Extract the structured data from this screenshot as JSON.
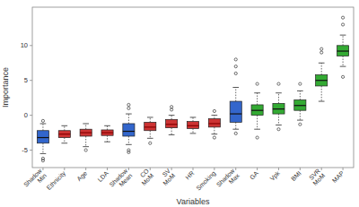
{
  "chart_data": {
    "type": "box",
    "xlabel": "Variables",
    "ylabel": "Importance",
    "categories": [
      "Shadow\nMin",
      "Ethnicity",
      "Age",
      "LDA",
      "Shadow\nMean",
      "CO\nMoM",
      "SV\nMoM",
      "HR",
      "Smoking",
      "Shadow\nMax",
      "GA",
      "Vpk",
      "BMI",
      "SVR\nMoM",
      "MAP"
    ],
    "colors": [
      "#3366cc",
      "#cc3333",
      "#cc3333",
      "#cc3333",
      "#3366cc",
      "#cc3333",
      "#cc3333",
      "#cc3333",
      "#cc3333",
      "#3366cc",
      "#33aa33",
      "#33aa33",
      "#33aa33",
      "#33aa33",
      "#33aa33"
    ],
    "boxes": [
      {
        "q1": -4.0,
        "med": -3.2,
        "q3": -2.2,
        "whislo": -5.5,
        "whishi": -1.2,
        "fliers_lo": [
          -6.2,
          -6.5
        ],
        "fliers_hi": [
          -0.8
        ]
      },
      {
        "q1": -3.2,
        "med": -2.7,
        "q3": -2.2,
        "whislo": -4.0,
        "whishi": -1.5,
        "fliers_lo": [],
        "fliers_hi": []
      },
      {
        "q1": -3.0,
        "med": -2.5,
        "q3": -2.0,
        "whislo": -4.5,
        "whishi": -1.2,
        "fliers_lo": [
          -5.0
        ],
        "fliers_hi": []
      },
      {
        "q1": -2.9,
        "med": -2.5,
        "q3": -2.1,
        "whislo": -3.8,
        "whishi": -1.5,
        "fliers_lo": [],
        "fliers_hi": []
      },
      {
        "q1": -3.0,
        "med": -2.3,
        "q3": -1.2,
        "whislo": -4.2,
        "whishi": 0.2,
        "fliers_lo": [
          -5.0,
          -5.3
        ],
        "fliers_hi": [
          1.0,
          1.5
        ]
      },
      {
        "q1": -2.2,
        "med": -1.7,
        "q3": -1.0,
        "whislo": -3.3,
        "whishi": -0.3,
        "fliers_lo": [
          -4.0
        ],
        "fliers_hi": []
      },
      {
        "q1": -1.8,
        "med": -1.3,
        "q3": -0.6,
        "whislo": -2.8,
        "whishi": 0.0,
        "fliers_lo": [],
        "fliers_hi": [
          0.8,
          1.2
        ]
      },
      {
        "q1": -1.9,
        "med": -1.5,
        "q3": -0.9,
        "whislo": -2.6,
        "whishi": -0.3,
        "fliers_lo": [],
        "fliers_hi": []
      },
      {
        "q1": -1.7,
        "med": -1.2,
        "q3": -0.5,
        "whislo": -2.7,
        "whishi": 0.0,
        "fliers_lo": [
          -3.2
        ],
        "fliers_hi": [
          0.6
        ]
      },
      {
        "q1": -1.0,
        "med": 0.2,
        "q3": 2.0,
        "whislo": -2.0,
        "whishi": 4.0,
        "fliers_lo": [
          -2.6
        ],
        "fliers_hi": [
          6.0,
          7.0,
          8.0
        ]
      },
      {
        "q1": 0.0,
        "med": 0.7,
        "q3": 1.5,
        "whislo": -2.0,
        "whishi": 3.2,
        "fliers_lo": [
          -3.2
        ],
        "fliers_hi": [
          4.5
        ]
      },
      {
        "q1": 0.2,
        "med": 0.9,
        "q3": 1.7,
        "whislo": -1.4,
        "whishi": 3.2,
        "fliers_lo": [
          -2.0
        ],
        "fliers_hi": [
          4.5
        ]
      },
      {
        "q1": 0.7,
        "med": 1.4,
        "q3": 2.2,
        "whislo": -0.7,
        "whishi": 3.5,
        "fliers_lo": [
          -1.3
        ],
        "fliers_hi": [
          4.5
        ]
      },
      {
        "q1": 4.2,
        "med": 5.0,
        "q3": 5.8,
        "whislo": 2.0,
        "whishi": 7.5,
        "fliers_lo": [],
        "fliers_hi": [
          9.0,
          9.5
        ]
      },
      {
        "q1": 8.5,
        "med": 9.2,
        "q3": 10.0,
        "whislo": 7.0,
        "whishi": 11.5,
        "fliers_lo": [
          5.5
        ],
        "fliers_hi": [
          13.0,
          14.0
        ]
      }
    ],
    "ylim": [
      -7.5,
      15.5
    ],
    "yticks": [
      -5,
      0,
      5,
      10
    ],
    "grid": false
  }
}
